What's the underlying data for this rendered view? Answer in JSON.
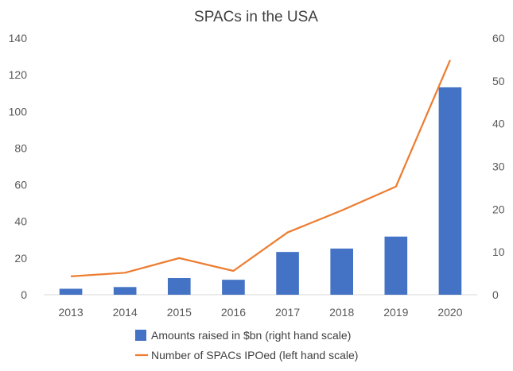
{
  "chart_data": {
    "type": "bar",
    "title": "SPACs in the USA",
    "categories": [
      "2013",
      "2014",
      "2015",
      "2016",
      "2017",
      "2018",
      "2019",
      "2020"
    ],
    "series": [
      {
        "name": "Amounts raised in $bn (right hand scale)",
        "type": "bar",
        "axis": "right",
        "color": "#4472C4",
        "values": [
          1.4,
          1.8,
          3.9,
          3.5,
          10.0,
          10.8,
          13.6,
          48.5
        ]
      },
      {
        "name": "Number of  SPACs IPOed (left hand scale)",
        "type": "line",
        "axis": "left",
        "color": "#ED7D31",
        "values": [
          10,
          12,
          20,
          13,
          34,
          46,
          59,
          128
        ]
      }
    ],
    "y_left": {
      "min": 0,
      "max": 140,
      "step": 20,
      "ticks": [
        "0",
        "20",
        "40",
        "60",
        "80",
        "100",
        "120",
        "140"
      ]
    },
    "y_right": {
      "min": 0,
      "max": 60,
      "step": 10,
      "ticks": [
        "0",
        "10",
        "20",
        "30",
        "40",
        "50",
        "60"
      ]
    },
    "grid": false,
    "legend_position": "bottom"
  }
}
